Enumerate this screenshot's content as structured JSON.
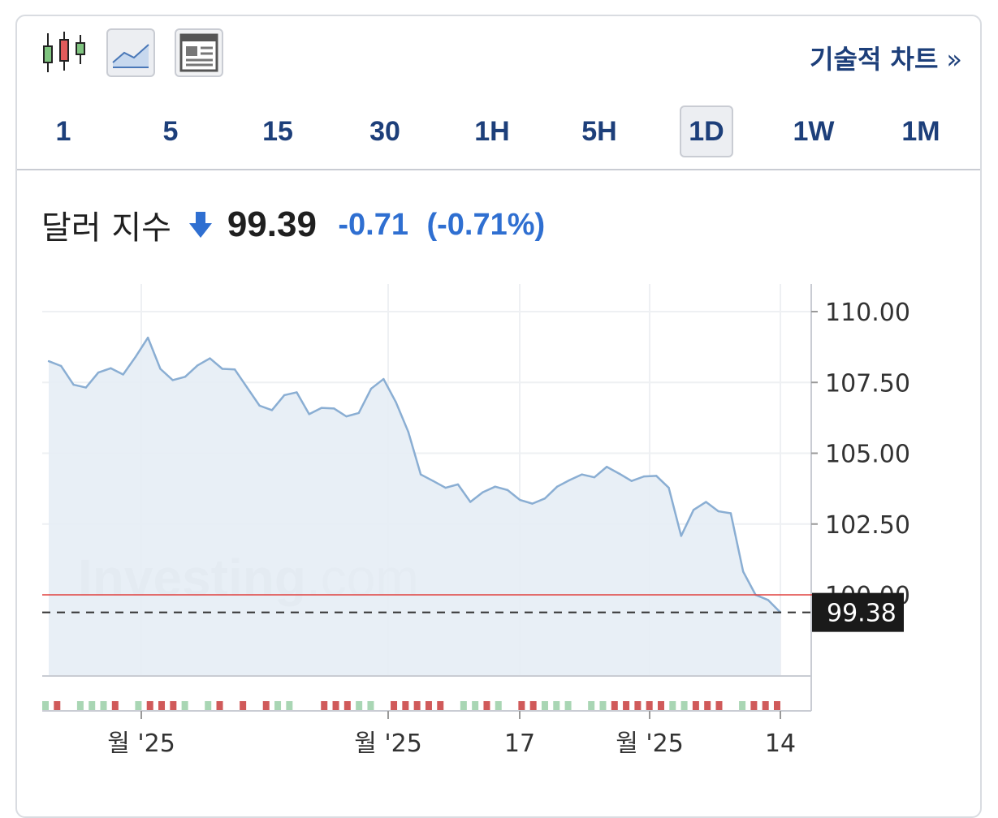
{
  "toolbar": {
    "icons": [
      "candlestick-icon",
      "area-chart-icon",
      "news-icon"
    ],
    "technical_chart_label": "기술적 차트",
    "chevron": "»"
  },
  "timeframes": [
    "1",
    "5",
    "15",
    "30",
    "1H",
    "5H",
    "1D",
    "1W",
    "1M"
  ],
  "active_timeframe": "1D",
  "quote": {
    "name": "달러 지수",
    "price": "99.39",
    "change": "-0.71",
    "change_pct": "(-0.71%)",
    "direction": "down"
  },
  "colors": {
    "brand_navy": "#1d3f7a",
    "down_blue": "#2f6fd1",
    "line": "#8aaed3",
    "area_fill": "#e6edf5",
    "ref_line": "#e0413f",
    "volume_up": "#a9d6b4",
    "volume_down": "#d05a5a"
  },
  "watermark": "Investing.com",
  "chart_data": {
    "type": "area",
    "title": "",
    "xlabel": "",
    "ylabel": "",
    "ylim": [
      97.2,
      110.9
    ],
    "y_ticks": [
      "110.00",
      "107.50",
      "105.00",
      "102.50",
      "100.00"
    ],
    "x_tick_labels": [
      "월 '25",
      "월 '25",
      "17",
      "월 '25",
      "14"
    ],
    "reference_line": 100.0,
    "last_price_label": "99.38",
    "last_price": 99.38,
    "grid": true,
    "series": [
      {
        "values": [
          108.25,
          108.08,
          107.42,
          107.32,
          107.85,
          108.0,
          107.78,
          108.4,
          109.08,
          107.98,
          107.58,
          107.7,
          108.1,
          108.35,
          107.98,
          107.96,
          107.32,
          106.68,
          106.52,
          107.05,
          107.15,
          106.38,
          106.6,
          106.58,
          106.3,
          106.42,
          107.28,
          107.62,
          106.8,
          105.75,
          104.25,
          104.02,
          103.78,
          103.9,
          103.28,
          103.62,
          103.82,
          103.7,
          103.35,
          103.22,
          103.4,
          103.82,
          104.05,
          104.25,
          104.15,
          104.52,
          104.28,
          104.02,
          104.18,
          104.2,
          103.78,
          102.08,
          103.0,
          103.28,
          102.95,
          102.88,
          100.82,
          100.0,
          99.82,
          99.38
        ]
      }
    ],
    "volume_bars": [
      "up",
      "down",
      "gap",
      "up",
      "up",
      "up",
      "down",
      "gap",
      "up",
      "down",
      "down",
      "down",
      "up",
      "gap",
      "up",
      "down",
      "gap",
      "down",
      "gap",
      "down",
      "up",
      "up",
      "gap",
      "gap",
      "down",
      "down",
      "down",
      "up",
      "up",
      "gap",
      "down",
      "down",
      "down",
      "down",
      "down",
      "gap",
      "up",
      "up",
      "down",
      "up",
      "gap",
      "down",
      "down",
      "up",
      "up",
      "up",
      "gap",
      "up",
      "up",
      "down",
      "down",
      "down",
      "down",
      "down",
      "up",
      "up",
      "down",
      "down",
      "down",
      "gap",
      "up",
      "down",
      "down",
      "down"
    ]
  }
}
